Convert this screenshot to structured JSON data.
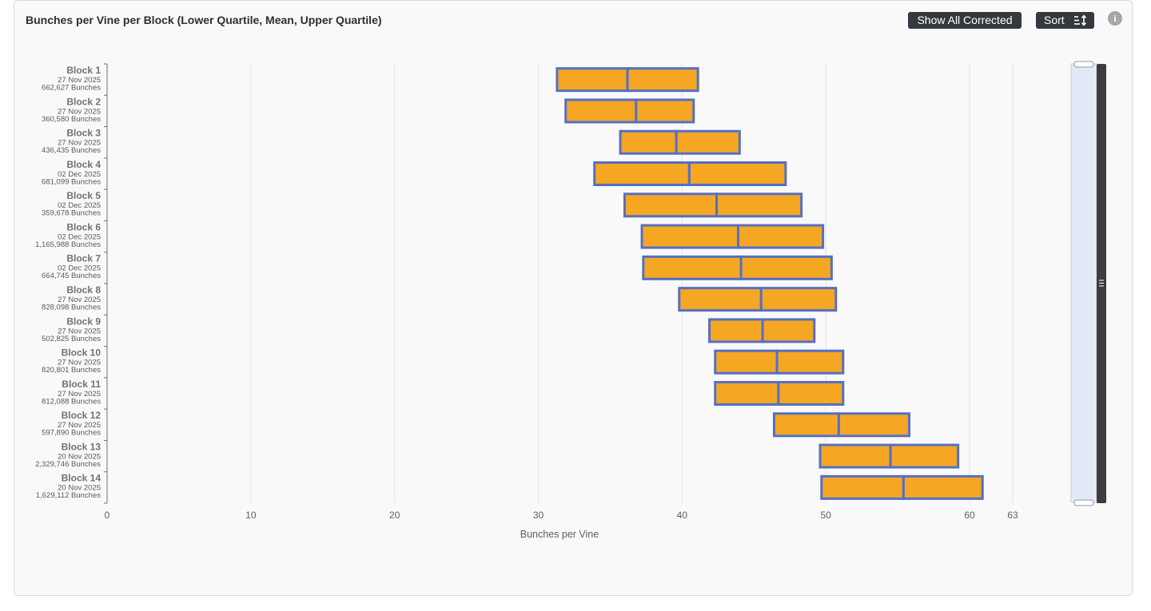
{
  "header": {
    "title": "Bunches per Vine per Block (Lower Quartile, Mean, Upper Quartile)",
    "show_all_label": "Show All Corrected",
    "sort_label": "Sort",
    "info_glyph": "i"
  },
  "icons": {
    "sort": "sort-icon",
    "info": "info-icon",
    "scroll_handle": "grip-icon"
  },
  "colors": {
    "bar_fill": "#f5a623",
    "bar_stroke": "#5470c6",
    "grid": "#e3e3e3",
    "button_bg": "#33393f",
    "navigator_fill": "#e3eaf7",
    "scrollbar": "#3d3d3d"
  },
  "chart_data": {
    "type": "bar",
    "subtype": "floating-range (lower quartile, mean, upper quartile)",
    "orientation": "horizontal",
    "title": "Bunches per Vine per Block (Lower Quartile, Mean, Upper Quartile)",
    "xlabel": "Bunches per Vine",
    "xlim": [
      0,
      63
    ],
    "xticks": [
      0,
      10,
      20,
      30,
      40,
      50,
      60,
      63
    ],
    "grid": true,
    "categories": [
      {
        "name": "Block 1",
        "date": "27 Nov 2025",
        "bunches": "662,627 Bunches",
        "lower": 31.3,
        "mean": 36.2,
        "upper": 41.1
      },
      {
        "name": "Block 2",
        "date": "27 Nov 2025",
        "bunches": "360,580 Bunches",
        "lower": 31.9,
        "mean": 36.8,
        "upper": 40.8
      },
      {
        "name": "Block 3",
        "date": "27 Nov 2025",
        "bunches": "436,435 Bunches",
        "lower": 35.7,
        "mean": 39.6,
        "upper": 44.0
      },
      {
        "name": "Block 4",
        "date": "02 Dec 2025",
        "bunches": "681,099 Bunches",
        "lower": 33.9,
        "mean": 40.5,
        "upper": 47.2
      },
      {
        "name": "Block 5",
        "date": "02 Dec 2025",
        "bunches": "359,678 Bunches",
        "lower": 36.0,
        "mean": 42.4,
        "upper": 48.3
      },
      {
        "name": "Block 6",
        "date": "02 Dec 2025",
        "bunches": "1,165,988 Bunches",
        "lower": 37.2,
        "mean": 43.9,
        "upper": 49.8
      },
      {
        "name": "Block 7",
        "date": "02 Dec 2025",
        "bunches": "664,745 Bunches",
        "lower": 37.3,
        "mean": 44.1,
        "upper": 50.4
      },
      {
        "name": "Block 8",
        "date": "27 Nov 2025",
        "bunches": "828,098 Bunches",
        "lower": 39.8,
        "mean": 45.5,
        "upper": 50.7
      },
      {
        "name": "Block 9",
        "date": "27 Nov 2025",
        "bunches": "502,825 Bunches",
        "lower": 41.9,
        "mean": 45.6,
        "upper": 49.2
      },
      {
        "name": "Block 10",
        "date": "27 Nov 2025",
        "bunches": "820,801 Bunches",
        "lower": 42.3,
        "mean": 46.6,
        "upper": 51.2
      },
      {
        "name": "Block 11",
        "date": "27 Nov 2025",
        "bunches": "812,088 Bunches",
        "lower": 42.3,
        "mean": 46.7,
        "upper": 51.2
      },
      {
        "name": "Block 12",
        "date": "27 Nov 2025",
        "bunches": "597,890 Bunches",
        "lower": 46.4,
        "mean": 50.9,
        "upper": 55.8
      },
      {
        "name": "Block 13",
        "date": "20 Nov 2025",
        "bunches": "2,329,746 Bunches",
        "lower": 49.6,
        "mean": 54.5,
        "upper": 59.2
      },
      {
        "name": "Block 14",
        "date": "20 Nov 2025",
        "bunches": "1,629,112 Bunches",
        "lower": 49.7,
        "mean": 55.4,
        "upper": 60.9
      }
    ]
  }
}
